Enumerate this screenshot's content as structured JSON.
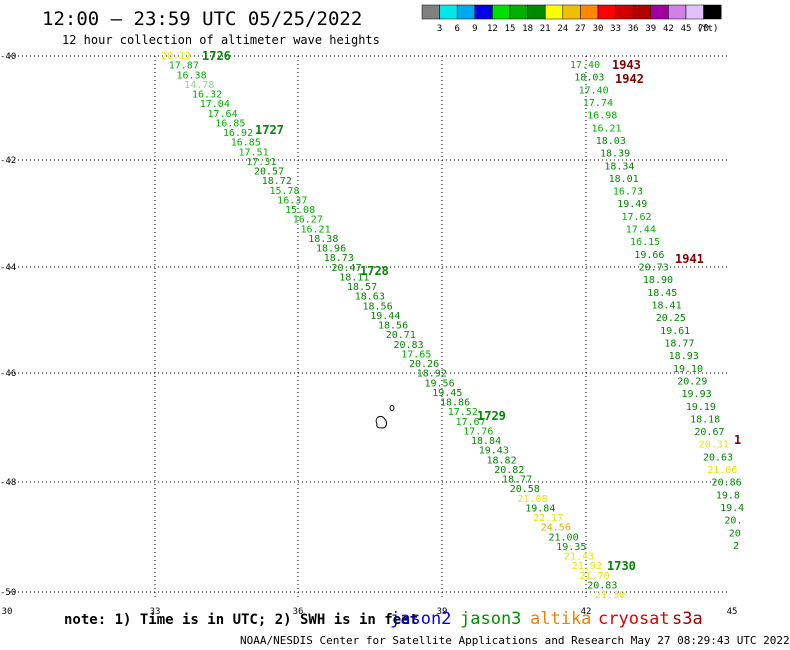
{
  "header": {
    "title": "12:00 — 23:59 UTC 05/25/2022",
    "subtitle": "12 hour collection of altimeter wave heights"
  },
  "color_scale": {
    "swatches": [
      "#808080",
      "#00e8e8",
      "#00a8f0",
      "#0000e8",
      "#00e000",
      "#00b000",
      "#008800",
      "#ffff00",
      "#f0c000",
      "#ff8800",
      "#ff0000",
      "#d00000",
      "#b00000",
      "#a000a0",
      "#d080e8",
      "#e0c0ff",
      "#000000"
    ],
    "labels": [
      "3",
      "6",
      "9",
      "12",
      "15",
      "18",
      "21",
      "24",
      "27",
      "30",
      "33",
      "36",
      "39",
      "42",
      "45",
      "70",
      "(ft)"
    ]
  },
  "map": {
    "lon_ticks": [
      "30",
      "33",
      "36",
      "39",
      "42",
      "45"
    ],
    "lat_ticks": [
      "-40",
      "-42",
      "-44",
      "-46",
      "-48",
      "-50"
    ],
    "grid": true
  },
  "tracks": [
    {
      "labels": [
        {
          "text": "1726",
          "color": "#008800"
        },
        {
          "text": "1727",
          "color": "#008800"
        },
        {
          "text": "1728",
          "color": "#008800"
        },
        {
          "text": "1729",
          "color": "#008800"
        },
        {
          "text": "1730",
          "color": "#008800"
        }
      ],
      "values": [
        {
          "v": "20.12",
          "c": "#e8e800"
        },
        {
          "v": "17.87",
          "c": "#00b000"
        },
        {
          "v": "16.38",
          "c": "#00b000"
        },
        {
          "v": "14.78",
          "c": "#80e080"
        },
        {
          "v": "16.32",
          "c": "#00b000"
        },
        {
          "v": "17.04",
          "c": "#00b000"
        },
        {
          "v": "17.64",
          "c": "#00b000"
        },
        {
          "v": "16.85",
          "c": "#00b000"
        },
        {
          "v": "16.92",
          "c": "#00b000"
        },
        {
          "v": "16.85",
          "c": "#00b000"
        },
        {
          "v": "17.51",
          "c": "#00b000"
        },
        {
          "v": "17.31",
          "c": "#00b000"
        },
        {
          "v": "20.57",
          "c": "#008800"
        },
        {
          "v": "18.72",
          "c": "#008800"
        },
        {
          "v": "15.78",
          "c": "#00b000"
        },
        {
          "v": "16.37",
          "c": "#00b000"
        },
        {
          "v": "15.08",
          "c": "#00b000"
        },
        {
          "v": "16.27",
          "c": "#00b000"
        },
        {
          "v": "16.21",
          "c": "#00b000"
        },
        {
          "v": "18.38",
          "c": "#008800"
        },
        {
          "v": "18.96",
          "c": "#008800"
        },
        {
          "v": "18.73",
          "c": "#008800"
        },
        {
          "v": "20.47",
          "c": "#008800"
        },
        {
          "v": "18.11",
          "c": "#008800"
        },
        {
          "v": "18.57",
          "c": "#008800"
        },
        {
          "v": "18.63",
          "c": "#008800"
        },
        {
          "v": "18.56",
          "c": "#008800"
        },
        {
          "v": "19.44",
          "c": "#008800"
        },
        {
          "v": "18.56",
          "c": "#008800"
        },
        {
          "v": "20.71",
          "c": "#008800"
        },
        {
          "v": "20.83",
          "c": "#008800"
        },
        {
          "v": "17.65",
          "c": "#00b000"
        },
        {
          "v": "20.26",
          "c": "#008800"
        },
        {
          "v": "18.92",
          "c": "#008800"
        },
        {
          "v": "19.56",
          "c": "#008800"
        },
        {
          "v": "19.45",
          "c": "#008800"
        },
        {
          "v": "18.86",
          "c": "#008800"
        },
        {
          "v": "17.52",
          "c": "#00b000"
        },
        {
          "v": "17.67",
          "c": "#00b000"
        },
        {
          "v": "17.76",
          "c": "#00b000"
        },
        {
          "v": "18.84",
          "c": "#008800"
        },
        {
          "v": "19.43",
          "c": "#008800"
        },
        {
          "v": "18.82",
          "c": "#008800"
        },
        {
          "v": "20.82",
          "c": "#008800"
        },
        {
          "v": "18.77",
          "c": "#008800"
        },
        {
          "v": "20.58",
          "c": "#008800"
        },
        {
          "v": "21.08",
          "c": "#e8e800"
        },
        {
          "v": "19.84",
          "c": "#008800"
        },
        {
          "v": "22.17",
          "c": "#e8e800"
        },
        {
          "v": "24.56",
          "c": "#e0b000"
        },
        {
          "v": "21.00",
          "c": "#008800"
        },
        {
          "v": "19.35",
          "c": "#008800"
        },
        {
          "v": "21.43",
          "c": "#e8e800"
        },
        {
          "v": "21.92",
          "c": "#e8e800"
        },
        {
          "v": "21.70",
          "c": "#e8e800"
        },
        {
          "v": "20.83",
          "c": "#008800"
        },
        {
          "v": "21.30",
          "c": "#e8e800"
        }
      ]
    },
    {
      "labels": [
        {
          "text": "1943",
          "color": "#800000"
        },
        {
          "text": "1942",
          "color": "#800000"
        },
        {
          "text": "1941",
          "color": "#800000"
        }
      ],
      "values": [
        {
          "v": "17.40",
          "c": "#00b000"
        },
        {
          "v": "18.03",
          "c": "#008800"
        },
        {
          "v": "17.40",
          "c": "#00b000"
        },
        {
          "v": "17.74",
          "c": "#00b000"
        },
        {
          "v": "16.98",
          "c": "#00b000"
        },
        {
          "v": "16.21",
          "c": "#00b000"
        },
        {
          "v": "18.03",
          "c": "#008800"
        },
        {
          "v": "18.39",
          "c": "#008800"
        },
        {
          "v": "18.34",
          "c": "#008800"
        },
        {
          "v": "18.01",
          "c": "#008800"
        },
        {
          "v": "16.73",
          "c": "#00b000"
        },
        {
          "v": "19.49",
          "c": "#008800"
        },
        {
          "v": "17.62",
          "c": "#00b000"
        },
        {
          "v": "17.44",
          "c": "#00b000"
        },
        {
          "v": "16.15",
          "c": "#00b000"
        },
        {
          "v": "19.66",
          "c": "#008800"
        },
        {
          "v": "20.73",
          "c": "#008800"
        },
        {
          "v": "18.90",
          "c": "#008800"
        },
        {
          "v": "18.45",
          "c": "#008800"
        },
        {
          "v": "18.41",
          "c": "#008800"
        },
        {
          "v": "20.25",
          "c": "#008800"
        },
        {
          "v": "19.61",
          "c": "#008800"
        },
        {
          "v": "18.77",
          "c": "#008800"
        },
        {
          "v": "18.93",
          "c": "#008800"
        },
        {
          "v": "19.10",
          "c": "#008800"
        },
        {
          "v": "20.29",
          "c": "#008800"
        },
        {
          "v": "19.93",
          "c": "#008800"
        },
        {
          "v": "19.19",
          "c": "#008800"
        },
        {
          "v": "18.18",
          "c": "#008800"
        },
        {
          "v": "20.67",
          "c": "#008800"
        },
        {
          "v": "20.31",
          "c": "#e8e800"
        },
        {
          "v": "20.63",
          "c": "#008800"
        },
        {
          "v": "21.06",
          "c": "#e8e800"
        },
        {
          "v": "20.86",
          "c": "#008800"
        },
        {
          "v": "19.8",
          "c": "#008800"
        },
        {
          "v": "19.4",
          "c": "#008800"
        },
        {
          "v": "20.",
          "c": "#008800"
        },
        {
          "v": "20",
          "c": "#008800"
        },
        {
          "v": "2",
          "c": "#008800"
        }
      ]
    }
  ],
  "note": "note: 1) Time is in UTC; 2) SWH is in feet",
  "missions": [
    {
      "name": "jason2",
      "color": "#0000e0"
    },
    {
      "name": "jason3",
      "color": "#009000"
    },
    {
      "name": "altika",
      "color": "#f08000"
    },
    {
      "name": "cryosat",
      "color": "#e00000"
    },
    {
      "name": "s3a",
      "color": "#a00000"
    }
  ],
  "footer": "NOAA/NESDIS Center for Satellite Applications and Research   May 27 08:29:43 UTC 2022",
  "edge_label": "1"
}
